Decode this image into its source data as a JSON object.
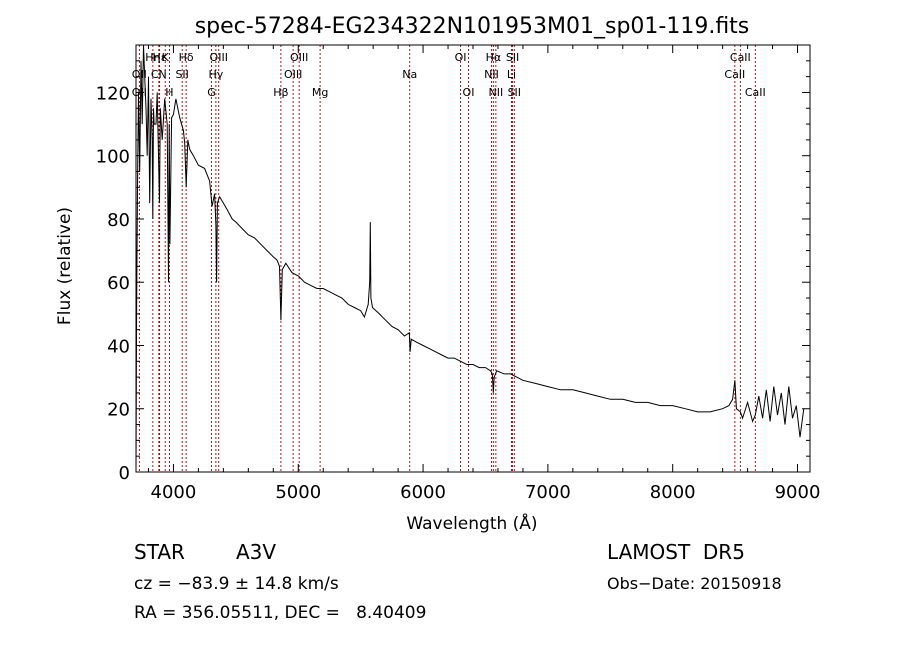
{
  "chart_data": {
    "type": "line",
    "title": "spec-57284-EG234322N101953M01_sp01-119.fits",
    "xlabel": "Wavelength (Å)",
    "ylabel": "Flux (relative)",
    "xlim": [
      3700,
      9100
    ],
    "ylim": [
      0,
      135
    ],
    "x_ticks": [
      4000,
      5000,
      6000,
      7000,
      8000,
      9000
    ],
    "x_tick_labels": [
      "4000",
      "5000",
      "6000",
      "7000",
      "8000",
      "9000"
    ],
    "y_ticks": [
      0,
      20,
      40,
      60,
      80,
      100,
      120
    ],
    "y_tick_labels": [
      "0",
      "20",
      "40",
      "60",
      "80",
      "100",
      "120"
    ],
    "grid": false,
    "line_color": "#000000",
    "marker_color": "#a00000",
    "series": [
      {
        "x": [
          3700,
          3705,
          3712,
          3720,
          3730,
          3740,
          3750,
          3760,
          3770,
          3780,
          3790,
          3800,
          3810,
          3820,
          3830,
          3835,
          3840,
          3845,
          3860,
          3870,
          3880,
          3888,
          3895,
          3910,
          3930,
          3950,
          3960,
          3966,
          3972,
          3985,
          4000,
          4020,
          4050,
          4080,
          4090,
          4102,
          4115,
          4130,
          4160,
          4200,
          4250,
          4290,
          4310,
          4330,
          4340,
          4346,
          4352,
          4370,
          4400,
          4430,
          4471,
          4500,
          4550,
          4600,
          4650,
          4700,
          4750,
          4800,
          4830,
          4850,
          4861,
          4872,
          4900,
          4950,
          5000,
          5050,
          5100,
          5150,
          5200,
          5250,
          5300,
          5350,
          5400,
          5450,
          5500,
          5530,
          5560,
          5572,
          5577,
          5582,
          5595,
          5650,
          5700,
          5750,
          5800,
          5850,
          5890,
          5896,
          5905,
          5950,
          6000,
          6050,
          6100,
          6150,
          6200,
          6250,
          6300,
          6350,
          6400,
          6450,
          6500,
          6540,
          6555,
          6563,
          6570,
          6590,
          6650,
          6700,
          6750,
          6800,
          6900,
          7000,
          7100,
          7200,
          7300,
          7400,
          7500,
          7600,
          7700,
          7800,
          7900,
          8000,
          8100,
          8200,
          8300,
          8400,
          8450,
          8480,
          8498,
          8510,
          8542,
          8560,
          8600,
          8640,
          8662,
          8690,
          8720,
          8750,
          8780,
          8810,
          8840,
          8870,
          8900,
          8930,
          8960,
          8990,
          9020,
          9050
        ],
        "y": [
          0,
          50,
          90,
          120,
          95,
          130,
          110,
          135,
          125,
          115,
          100,
          125,
          85,
          118,
          105,
          80,
          115,
          110,
          110,
          120,
          100,
          85,
          115,
          105,
          118,
          110,
          60,
          110,
          72,
          112,
          113,
          118,
          112,
          108,
          104,
          90,
          105,
          102,
          100,
          97,
          96,
          92,
          84,
          88,
          78,
          60,
          85,
          87,
          85,
          83,
          80,
          79,
          77,
          75,
          74,
          72,
          70,
          68,
          67,
          65,
          48,
          64,
          66,
          63,
          62,
          60,
          59,
          58,
          58,
          57,
          56,
          55,
          53,
          52,
          51,
          49,
          53,
          60,
          79,
          55,
          52,
          50,
          48,
          46,
          45,
          43,
          44,
          38,
          42,
          41,
          40,
          39,
          38,
          37,
          36,
          36,
          35,
          34,
          34,
          33,
          33,
          32,
          31,
          25,
          30,
          32,
          31,
          31,
          30,
          29,
          28,
          27,
          26,
          26,
          25,
          24,
          23,
          23,
          22,
          22,
          21,
          21,
          20,
          19,
          19,
          20,
          21,
          23,
          29,
          20,
          19,
          17,
          22,
          16,
          18,
          24,
          17,
          26,
          16,
          27,
          18,
          25,
          15,
          27,
          17,
          21,
          11,
          20
        ]
      }
    ],
    "line_markers": [
      {
        "label": "Hη",
        "wavelength": 3835,
        "row": 0
      },
      {
        "label": "Hε",
        "wavelength": 3889,
        "row": 0
      },
      {
        "label": "K",
        "wavelength": 3934,
        "row": 0
      },
      {
        "label": "Hδ",
        "wavelength": 4102,
        "row": 0
      },
      {
        "label": "OIII",
        "wavelength": 4363,
        "row": 0
      },
      {
        "label": "OIII",
        "wavelength": 5007,
        "row": 0
      },
      {
        "label": "OI",
        "wavelength": 6300,
        "row": 0
      },
      {
        "label": "Hα",
        "wavelength": 6563,
        "row": 0
      },
      {
        "label": "SII",
        "wavelength": 6717,
        "row": 0
      },
      {
        "label": "CaII",
        "wavelength": 8542,
        "row": 0
      },
      {
        "label": "OII",
        "wavelength": 3727,
        "row": 1
      },
      {
        "label": "CN",
        "wavelength": 3883,
        "row": 1
      },
      {
        "label": "SII",
        "wavelength": 4070,
        "row": 1
      },
      {
        "label": "Hγ",
        "wavelength": 4340,
        "row": 1
      },
      {
        "label": "OIII",
        "wavelength": 4959,
        "row": 1
      },
      {
        "label": "Na",
        "wavelength": 5893,
        "row": 1
      },
      {
        "label": "NII",
        "wavelength": 6548,
        "row": 1
      },
      {
        "label": "Li",
        "wavelength": 6708,
        "row": 1
      },
      {
        "label": "CaII",
        "wavelength": 8498,
        "row": 1
      },
      {
        "label": "OII",
        "wavelength": 3727,
        "row": 2
      },
      {
        "label": "H",
        "wavelength": 3968,
        "row": 2
      },
      {
        "label": "G",
        "wavelength": 4305,
        "row": 2
      },
      {
        "label": "Hβ",
        "wavelength": 4861,
        "row": 2
      },
      {
        "label": "Mg",
        "wavelength": 5175,
        "row": 2
      },
      {
        "label": "OI",
        "wavelength": 6364,
        "row": 2
      },
      {
        "label": "NII",
        "wavelength": 6583,
        "row": 2
      },
      {
        "label": "SII",
        "wavelength": 6731,
        "row": 2
      },
      {
        "label": "CaII",
        "wavelength": 8662,
        "row": 2
      }
    ]
  },
  "info": {
    "class": "STAR",
    "subclass": "A3V",
    "survey": "LAMOST  DR5",
    "cz": "cz = −83.9 ± 14.8 km/s",
    "obs_date": "Obs−Date: 20150918",
    "radec": "RA = 356.05511, DEC =   8.40409"
  }
}
